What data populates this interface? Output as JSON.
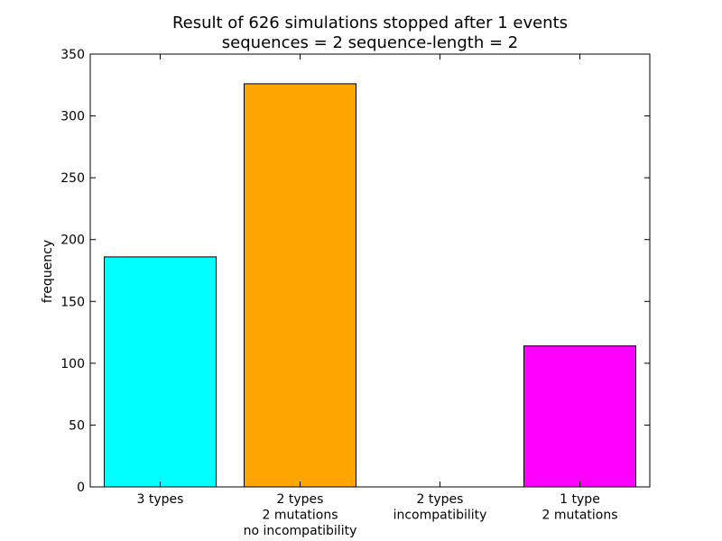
{
  "chart_data": {
    "type": "bar",
    "title_lines": [
      "Result of 626 simulations stopped after 1 events",
      "sequences = 2    sequence-length = 2"
    ],
    "xlabel": "",
    "ylabel": "frequency",
    "ylim": [
      0,
      350
    ],
    "yticks": [
      0,
      50,
      100,
      150,
      200,
      250,
      300,
      350
    ],
    "grid": false,
    "categories": [
      [
        "3 types"
      ],
      [
        "2 types",
        "2 mutations",
        "no incompatibility"
      ],
      [
        "2 types",
        "incompatibility"
      ],
      [
        "1 type",
        "2 mutations"
      ]
    ],
    "values": [
      186,
      326,
      0,
      114
    ],
    "colors": [
      "#00ffff",
      "#ffa500",
      "#ffffff",
      "#ff00ff"
    ]
  }
}
